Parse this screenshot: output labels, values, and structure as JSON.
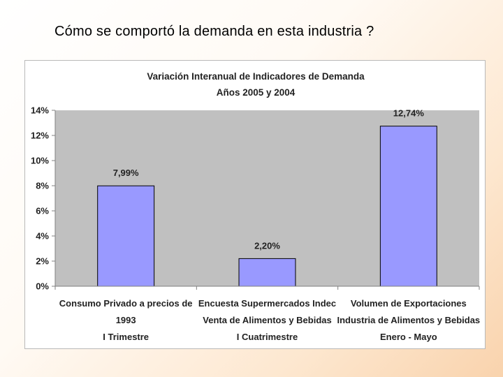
{
  "slide": {
    "title": "Cómo se comportó la demanda en esta industria ?"
  },
  "colors": {
    "bar_fill": "#9999ff",
    "plot_bg": "#c0c0c0",
    "bar_stroke": "#000000"
  },
  "chart_data": {
    "type": "bar",
    "title": "Variación Interanual de Indicadores de Demanda",
    "subtitle": "Años 2005 y 2004",
    "xlabel": "",
    "ylabel": "",
    "ylim": [
      0,
      14
    ],
    "yticks": [
      "0%",
      "2%",
      "4%",
      "6%",
      "8%",
      "10%",
      "12%",
      "14%"
    ],
    "ytick_values": [
      0,
      2,
      4,
      6,
      8,
      10,
      12,
      14
    ],
    "grid": false,
    "categories": [
      [
        "Consumo Privado a precios de",
        "1993",
        "I Trimestre"
      ],
      [
        "Encuesta Supermercados Indec",
        "Venta de Alimentos y Bebidas",
        "I Cuatrimestre"
      ],
      [
        "Volumen de Exportaciones",
        "Industria de Alimentos y Bebidas",
        "Enero - Mayo"
      ]
    ],
    "values": [
      7.99,
      2.2,
      12.74
    ],
    "data_labels": [
      "7,99%",
      "2,20%",
      "12,74%"
    ]
  }
}
